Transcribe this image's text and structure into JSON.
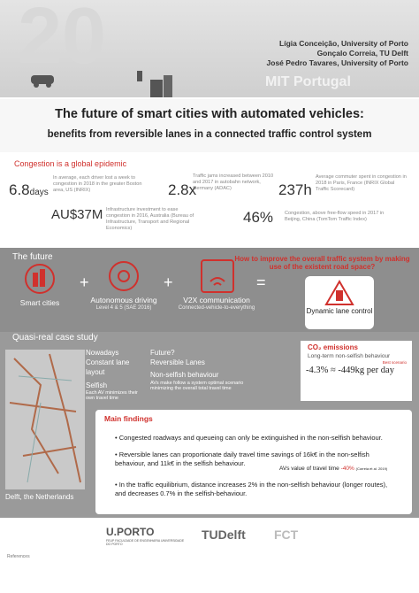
{
  "header": {
    "authors": [
      "Lígia Conceição, University of Porto",
      "Gonçalo Correia, TU Delft",
      "José Pedro Tavares, University of Porto"
    ],
    "banner": "MIT Portugal",
    "title": "The future of smart cities with automated vehicles:",
    "subtitle": "benefits from reversible lanes in a connected traffic control system"
  },
  "congestion": {
    "heading": "Congestion is a global epidemic",
    "stats": [
      {
        "value": "6.8",
        "unit": "days",
        "text": "In average, each driver lost a week to congestion in 2018 in the greater Boston area, US (INRIX)"
      },
      {
        "value": "2.8x",
        "text": "Traffic jams increased between 2010 and 2017 in autobahn network, Germany (ADAC)"
      },
      {
        "value": "237h",
        "text": "Average commuter spent in congestion in 2018 in Paris, France (INRIX Global Traffic Scorecard)"
      },
      {
        "value": "AU$37M",
        "text": "Infrastructure investment to ease congestion in 2016, Australia (Bureau of Infrastructure, Transport and Regional Economics)"
      },
      {
        "value": "46%",
        "text": "Congestion, above free-flow speed in 2017 in Beijing, China (TomTom Traffic Index)"
      }
    ]
  },
  "future": {
    "heading": "The future",
    "question": "How to improve the overall traffic system by making use of the existent road space?",
    "items": [
      {
        "label": "Smart cities"
      },
      {
        "label": "Autonomous driving",
        "note": "Level 4 & 5 (SAE 2016)"
      },
      {
        "label": "V2X communication",
        "note": "Connected-vehicle-to-everything"
      },
      {
        "label": "Dynamic lane control"
      }
    ]
  },
  "case_study": {
    "heading": "Quasi-real case study",
    "map_caption": "Delft, the Netherlands",
    "nowadays": {
      "title": "Nowadays",
      "layout": "Constant lane layout",
      "behaviour": "Selfish",
      "note": "Each AV minimizes their own travel time"
    },
    "future": {
      "title": "Future?",
      "layout": "Reversible Lanes",
      "behaviour": "Non-selfish behaviour",
      "note": "AVs make follow a system optimal scenario minimizing the overall total travel time"
    },
    "emissions": {
      "title": "CO₂ emissions",
      "subtitle": "Long-term non-selfish behaviour",
      "tag": "Best scenario",
      "value": "-4.3% ≈ -449kg per day"
    }
  },
  "findings": {
    "heading": "Main findings",
    "items": [
      "Congested roadways and queueing can only be extinguished in the non-selfish behaviour.",
      "Reversible lanes can proportionate daily travel time savings of 16k€ in the non-selfish behaviour, and 11k€ in the selfish behaviour.",
      "In the traffic equilibrium, distance increases 2% in the non-selfish behaviour (longer routes), and decreases 0.7% in the selfish-behaviour."
    ],
    "aside_label": "AVs value of travel time",
    "aside_value": "-40%",
    "aside_source": "(Correia et al. 2019)"
  },
  "footer": {
    "logos": [
      "U.PORTO",
      "FEUP FACULDADE DE ENGENHARIA UNIVERSIDADE DO PORTO",
      "TUDelft",
      "FCT"
    ],
    "references_heading": "References"
  }
}
